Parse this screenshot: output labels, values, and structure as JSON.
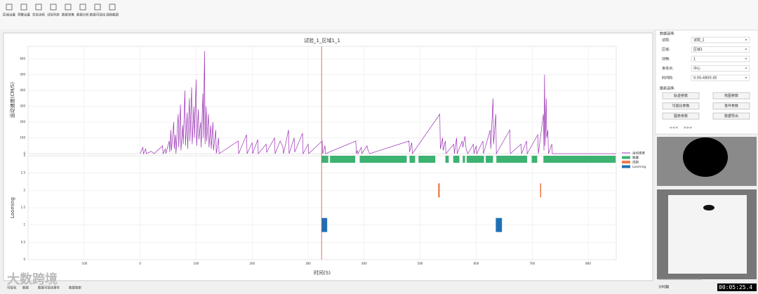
{
  "toolbar": [
    "区域设置",
    "预警设置",
    "实验流程",
    "试验列表",
    "数据采集",
    "数据分析",
    "数据可视化",
    "视频截图"
  ],
  "chart_data": {
    "type": "line",
    "title": "试验_1_区域1_1",
    "xlabel": "时间(S)",
    "xlim": [
      -200,
      850
    ],
    "xticks": [
      -100,
      0,
      100,
      200,
      300,
      400,
      500,
      600,
      700,
      800
    ],
    "grid": true,
    "legend": "right",
    "marker_x": 324,
    "marker_color": "#e74c3c",
    "panels": [
      {
        "ylabel": "运动速度(CM/S)",
        "ylim": [
          0,
          680
        ],
        "yticks": [
          0,
          100,
          200,
          300,
          400,
          500,
          600
        ]
      },
      {
        "ylabel": "Looming",
        "ylim": [
          0,
          3
        ],
        "yticks": [
          0,
          0.5,
          1,
          1.5,
          2,
          2.5,
          3
        ]
      }
    ],
    "series": [
      {
        "name": "运动速度",
        "color": "#9b30b5",
        "type": "line",
        "panel": 0,
        "x": [
          0,
          5,
          6,
          10,
          11,
          20,
          25,
          40,
          41,
          45,
          46,
          52,
          53,
          55,
          56,
          60,
          61,
          63,
          64,
          68,
          69,
          72,
          73,
          76,
          77,
          80,
          81,
          84,
          85,
          88,
          89,
          92,
          93,
          96,
          97,
          100,
          101,
          104,
          105,
          108,
          109,
          112,
          113,
          115,
          116,
          118,
          119,
          122,
          123,
          126,
          127,
          130,
          131,
          135,
          136,
          140,
          141,
          175,
          176,
          190,
          191,
          200,
          201,
          210,
          211,
          225,
          226,
          240,
          241,
          250,
          255,
          256,
          265,
          266,
          275,
          276,
          290,
          291,
          300,
          301,
          325,
          326,
          330,
          331,
          385,
          386,
          388,
          389,
          395,
          396,
          405,
          407,
          410,
          480,
          481,
          485,
          486,
          535,
          536,
          540,
          541,
          545,
          546,
          560,
          561,
          565,
          566,
          575,
          576,
          580,
          582,
          585,
          595,
          596,
          600,
          601,
          612,
          613,
          625,
          626,
          630,
          631,
          635,
          636,
          660,
          661,
          680,
          681,
          690,
          691,
          710,
          711,
          720,
          721,
          722,
          723,
          725,
          726,
          728,
          729,
          735,
          736,
          850
        ],
        "values": [
          0,
          40,
          0,
          30,
          0,
          15,
          0,
          50,
          0,
          30,
          0,
          80,
          10,
          150,
          20,
          200,
          30,
          120,
          0,
          250,
          40,
          310,
          20,
          180,
          60,
          400,
          50,
          260,
          30,
          350,
          80,
          420,
          60,
          300,
          100,
          470,
          50,
          280,
          90,
          200,
          40,
          380,
          100,
          650,
          60,
          300,
          80,
          250,
          40,
          180,
          30,
          200,
          20,
          150,
          0,
          100,
          0,
          80,
          0,
          120,
          0,
          70,
          0,
          90,
          0,
          60,
          10,
          100,
          0,
          80,
          40,
          0,
          150,
          0,
          100,
          10,
          130,
          0,
          60,
          0,
          80,
          0,
          50,
          0,
          80,
          0,
          20,
          0,
          40,
          0,
          50,
          20,
          0,
          80,
          10,
          70,
          0,
          250,
          30,
          100,
          20,
          80,
          0,
          60,
          0,
          100,
          0,
          80,
          40,
          110,
          30,
          0,
          60,
          0,
          50,
          0,
          80,
          0,
          150,
          30,
          350,
          60,
          250,
          0,
          150,
          0,
          60,
          0,
          80,
          0,
          120,
          0,
          250,
          20,
          500,
          50,
          350,
          100,
          150,
          0,
          60,
          0,
          0
        ]
      },
      {
        "name": "躲藏",
        "color": "#3cb371",
        "type": "interval",
        "panel": 1,
        "level": 3,
        "intervals": [
          [
            324,
            336
          ],
          [
            339,
            384
          ],
          [
            392,
            476
          ],
          [
            481,
            491
          ],
          [
            497,
            527
          ],
          [
            545,
            551
          ],
          [
            559,
            570
          ],
          [
            576,
            580
          ],
          [
            583,
            614
          ],
          [
            617,
            630
          ],
          [
            636,
            691
          ],
          [
            699,
            709
          ],
          [
            720,
            849
          ]
        ]
      },
      {
        "name": "逃跑",
        "color": "#f07c4a",
        "type": "interval",
        "panel": 1,
        "level": 2,
        "intervals": [
          [
            532,
            535
          ],
          [
            714,
            716
          ]
        ]
      },
      {
        "name": "Looming",
        "color": "#1f6fb5",
        "type": "interval",
        "panel": 1,
        "level": 1,
        "intervals": [
          [
            324,
            334
          ],
          [
            635,
            646
          ]
        ]
      }
    ]
  },
  "side_panel": {
    "data_title": "数据选择:",
    "fields": [
      {
        "label": "试验:",
        "value": "试验_1"
      },
      {
        "label": "区域:",
        "value": "区域1"
      },
      {
        "label": "动物:",
        "value": "1"
      },
      {
        "label": "身体点:",
        "value": "中心"
      },
      {
        "label": "时间段:",
        "value": "0.00-4800.45"
      }
    ],
    "chart_title": "图表选择:",
    "buttons": [
      "轨迹参数",
      "热图参数",
      "可视化参数",
      "事件参数",
      "图表参数",
      "数据导出"
    ],
    "nav": [
      "<<<",
      ">>>"
    ]
  },
  "footer": {
    "tabs": [
      "可视化",
      "数据",
      "数据可视化",
      "事件",
      "数据搜索"
    ],
    "watermark": "大数跨境",
    "slider_label": "计时器",
    "timecode": "00:05:25.4"
  }
}
